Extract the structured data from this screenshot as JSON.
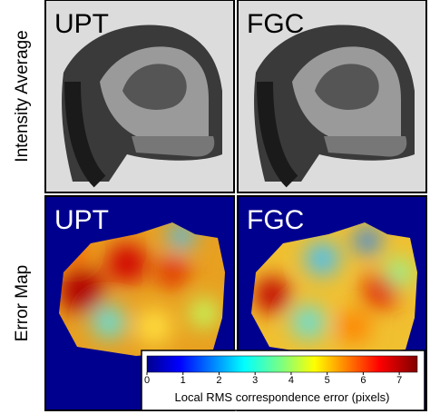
{
  "row_labels": [
    "Intensity Average",
    "Error Map"
  ],
  "panels": [
    {
      "label": "UPT"
    },
    {
      "label": "FGC"
    },
    {
      "label": "UPT"
    },
    {
      "label": "FGC"
    }
  ],
  "colorbar": {
    "label": "Local RMS correspondence error (pixels)",
    "lim": [
      0,
      7.5
    ],
    "ticks": [
      0,
      1,
      2,
      3,
      4,
      5,
      6,
      7
    ]
  }
}
